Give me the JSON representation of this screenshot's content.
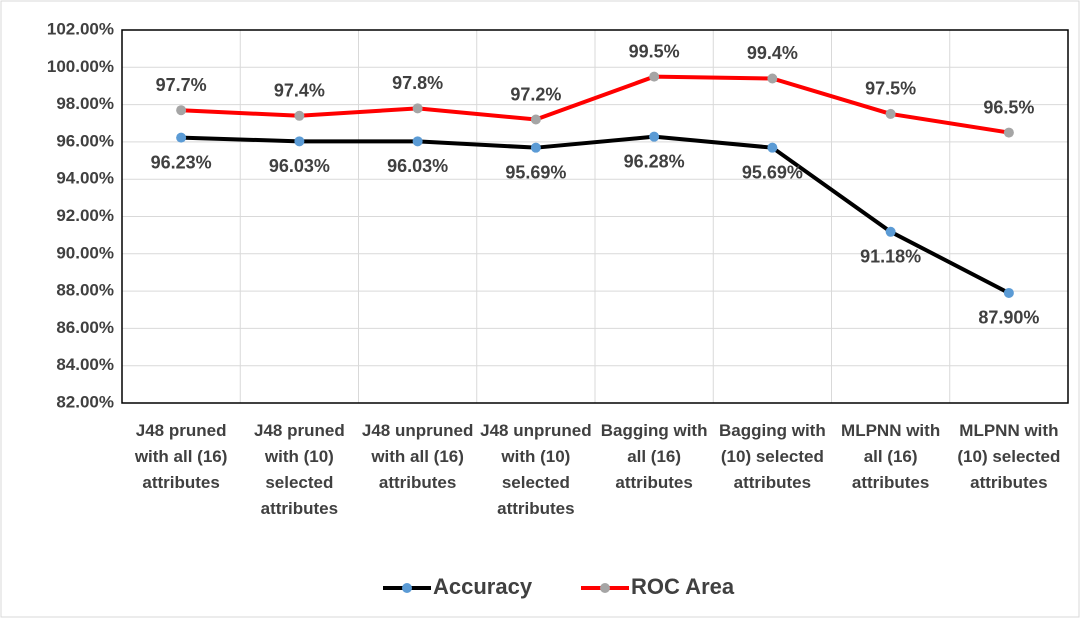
{
  "chart_data": {
    "type": "line",
    "categories": [
      "J48 pruned with all (16) attributes",
      "J48 pruned with (10) selected attributes",
      "J48 unpruned with all (16) attributes",
      "J48 unpruned with (10) selected attributes",
      "Bagging with all (16) attributes",
      "Bagging with (10) selected attributes",
      "MLPNN with all (16) attributes",
      "MLPNN with (10) selected attributes"
    ],
    "series": [
      {
        "name": "Accuracy",
        "color": "#000000",
        "marker_color": "#5b9bd5",
        "values": [
          96.23,
          96.03,
          96.03,
          95.69,
          96.28,
          95.69,
          91.18,
          87.9
        ],
        "value_labels": [
          "96.23%",
          "96.03%",
          "96.03%",
          "95.69%",
          "96.28%",
          "95.69%",
          "91.18%",
          "87.90%"
        ]
      },
      {
        "name": "ROC Area",
        "color": "#ff0000",
        "marker_color": "#a5a5a5",
        "values": [
          97.7,
          97.4,
          97.8,
          97.2,
          99.5,
          99.4,
          97.5,
          96.5
        ],
        "value_labels": [
          "97.7%",
          "97.4%",
          "97.8%",
          "97.2%",
          "99.5%",
          "99.4%",
          "97.5%",
          "96.5%"
        ]
      }
    ],
    "ylim": [
      82,
      102
    ],
    "yticks": [
      {
        "value": 82,
        "label": "82.00%"
      },
      {
        "value": 84,
        "label": "84.00%"
      },
      {
        "value": 86,
        "label": "86.00%"
      },
      {
        "value": 88,
        "label": "88.00%"
      },
      {
        "value": 90,
        "label": "90.00%"
      },
      {
        "value": 92,
        "label": "92.00%"
      },
      {
        "value": 94,
        "label": "94.00%"
      },
      {
        "value": 96,
        "label": "96.00%"
      },
      {
        "value": 98,
        "label": "98.00%"
      },
      {
        "value": 100,
        "label": "100.00%"
      },
      {
        "value": 102,
        "label": "102.00%"
      }
    ],
    "grid": true,
    "legend": "bottom"
  }
}
